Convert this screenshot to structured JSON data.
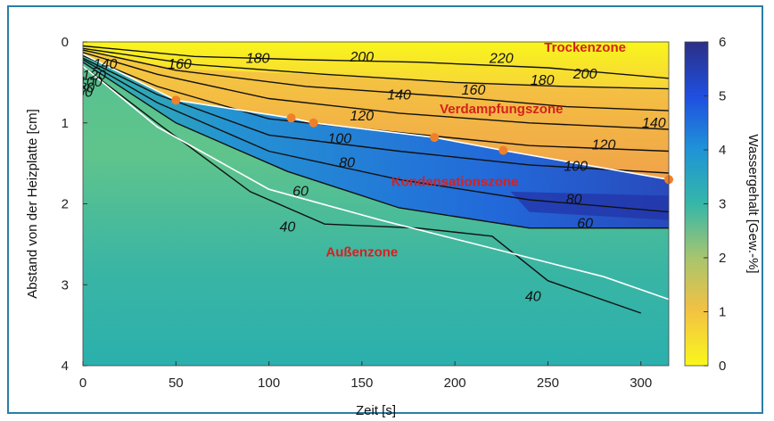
{
  "chart_data": {
    "type": "heatmap",
    "xlabel": "Zeit [s]",
    "ylabel": "Abstand von der Heizplatte [cm]",
    "xlim": [
      0,
      315
    ],
    "ylim": [
      0,
      4
    ],
    "y_inverted": true,
    "x_ticks": [
      "0",
      "50",
      "100",
      "150",
      "200",
      "250",
      "300"
    ],
    "y_ticks": [
      "0",
      "1",
      "2",
      "3",
      "4"
    ],
    "colorbar": {
      "label": "Wassergehalt [Gew.-%]",
      "range": [
        0,
        6
      ],
      "ticks": [
        "0",
        "1",
        "2",
        "3",
        "4",
        "5",
        "6"
      ],
      "colors": [
        "#f9f71c",
        "#f3c242",
        "#a9c56d",
        "#35b7a8",
        "#1f93d7",
        "#1f4fe0",
        "#2b2f86"
      ]
    },
    "isotherm_labels": [
      {
        "text": "140",
        "x": 12,
        "y": 0.33
      },
      {
        "text": "120",
        "x": 6,
        "y": 0.47
      },
      {
        "text": "100",
        "x": 4,
        "y": 0.55
      },
      {
        "text": "80",
        "x": 2,
        "y": 0.62
      },
      {
        "text": "60",
        "x": 1,
        "y": 0.68
      },
      {
        "text": "40",
        "x": -17,
        "y": 1.12
      },
      {
        "text": "160",
        "x": 52,
        "y": 0.33
      },
      {
        "text": "180",
        "x": 94,
        "y": 0.26
      },
      {
        "text": "200",
        "x": 150,
        "y": 0.24
      },
      {
        "text": "220",
        "x": 225,
        "y": 0.26
      },
      {
        "text": "200",
        "x": 270,
        "y": 0.45
      },
      {
        "text": "180",
        "x": 247,
        "y": 0.53
      },
      {
        "text": "160",
        "x": 210,
        "y": 0.65
      },
      {
        "text": "140",
        "x": 170,
        "y": 0.71
      },
      {
        "text": "140",
        "x": 307,
        "y": 1.06
      },
      {
        "text": "120",
        "x": 150,
        "y": 0.97
      },
      {
        "text": "120",
        "x": 280,
        "y": 1.33
      },
      {
        "text": "100",
        "x": 138,
        "y": 1.25
      },
      {
        "text": "100",
        "x": 265,
        "y": 1.59
      },
      {
        "text": "80",
        "x": 142,
        "y": 1.55
      },
      {
        "text": "80",
        "x": 264,
        "y": 2.0
      },
      {
        "text": "60",
        "x": 117,
        "y": 1.9
      },
      {
        "text": "60",
        "x": 270,
        "y": 2.3
      },
      {
        "text": "40",
        "x": 110,
        "y": 2.34
      },
      {
        "text": "40",
        "x": 242,
        "y": 3.2
      }
    ],
    "isotherms": [
      {
        "level": 200,
        "points": [
          [
            0,
            0.05
          ],
          [
            60,
            0.18
          ],
          [
            120,
            0.22
          ],
          [
            180,
            0.25
          ],
          [
            250,
            0.32
          ],
          [
            315,
            0.45
          ]
        ]
      },
      {
        "level": 180,
        "points": [
          [
            0,
            0.08
          ],
          [
            60,
            0.28
          ],
          [
            130,
            0.4
          ],
          [
            200,
            0.5
          ],
          [
            260,
            0.55
          ],
          [
            315,
            0.58
          ]
        ]
      },
      {
        "level": 160,
        "points": [
          [
            0,
            0.1
          ],
          [
            50,
            0.35
          ],
          [
            120,
            0.55
          ],
          [
            200,
            0.68
          ],
          [
            260,
            0.8
          ],
          [
            315,
            0.85
          ]
        ]
      },
      {
        "level": 140,
        "points": [
          [
            0,
            0.13
          ],
          [
            40,
            0.4
          ],
          [
            100,
            0.7
          ],
          [
            170,
            0.88
          ],
          [
            240,
            1.0
          ],
          [
            315,
            1.08
          ]
        ]
      },
      {
        "level": 120,
        "points": [
          [
            0,
            0.17
          ],
          [
            40,
            0.55
          ],
          [
            100,
            0.95
          ],
          [
            170,
            1.12
          ],
          [
            240,
            1.28
          ],
          [
            315,
            1.35
          ]
        ]
      },
      {
        "level": 100,
        "points": [
          [
            0,
            0.2
          ],
          [
            40,
            0.65
          ],
          [
            100,
            1.15
          ],
          [
            170,
            1.35
          ],
          [
            240,
            1.52
          ],
          [
            315,
            1.62
          ]
        ]
      },
      {
        "level": 80,
        "points": [
          [
            0,
            0.22
          ],
          [
            40,
            0.75
          ],
          [
            100,
            1.35
          ],
          [
            170,
            1.7
          ],
          [
            240,
            1.95
          ],
          [
            315,
            2.1
          ]
        ]
      },
      {
        "level": 60,
        "points": [
          [
            0,
            0.25
          ],
          [
            50,
            1.0
          ],
          [
            110,
            1.6
          ],
          [
            170,
            2.05
          ],
          [
            240,
            2.3
          ],
          [
            315,
            2.3
          ]
        ]
      },
      {
        "level": 40,
        "points": [
          [
            0,
            0.3
          ],
          [
            40,
            1.0
          ],
          [
            90,
            1.85
          ],
          [
            130,
            2.25
          ],
          [
            180,
            2.3
          ],
          [
            220,
            2.4
          ],
          [
            250,
            2.95
          ],
          [
            300,
            3.35
          ]
        ]
      }
    ],
    "zone_boundaries": [
      {
        "points": [
          [
            0,
            0.15
          ],
          [
            50,
            0.72
          ],
          [
            112,
            0.94
          ],
          [
            124,
            1.0
          ],
          [
            189,
            1.18
          ],
          [
            226,
            1.34
          ],
          [
            315,
            1.7
          ]
        ]
      },
      {
        "points": [
          [
            0,
            0.3
          ],
          [
            40,
            1.05
          ],
          [
            100,
            1.82
          ],
          [
            160,
            2.2
          ],
          [
            220,
            2.55
          ],
          [
            280,
            2.9
          ],
          [
            315,
            3.18
          ]
        ]
      }
    ],
    "points": [
      {
        "x": 50,
        "y": 0.72
      },
      {
        "x": 112,
        "y": 0.94
      },
      {
        "x": 124,
        "y": 1.0
      },
      {
        "x": 189,
        "y": 1.18
      },
      {
        "x": 226,
        "y": 1.34
      },
      {
        "x": 315,
        "y": 1.7
      }
    ],
    "zones": [
      {
        "text": "Trockenzone",
        "x": 270,
        "y": 0.12
      },
      {
        "text": "Verdampfungszone",
        "x": 225,
        "y": 0.88
      },
      {
        "text": "Kondensationszone",
        "x": 200,
        "y": 1.78
      },
      {
        "text": "Außenzone",
        "x": 150,
        "y": 2.65
      }
    ]
  }
}
